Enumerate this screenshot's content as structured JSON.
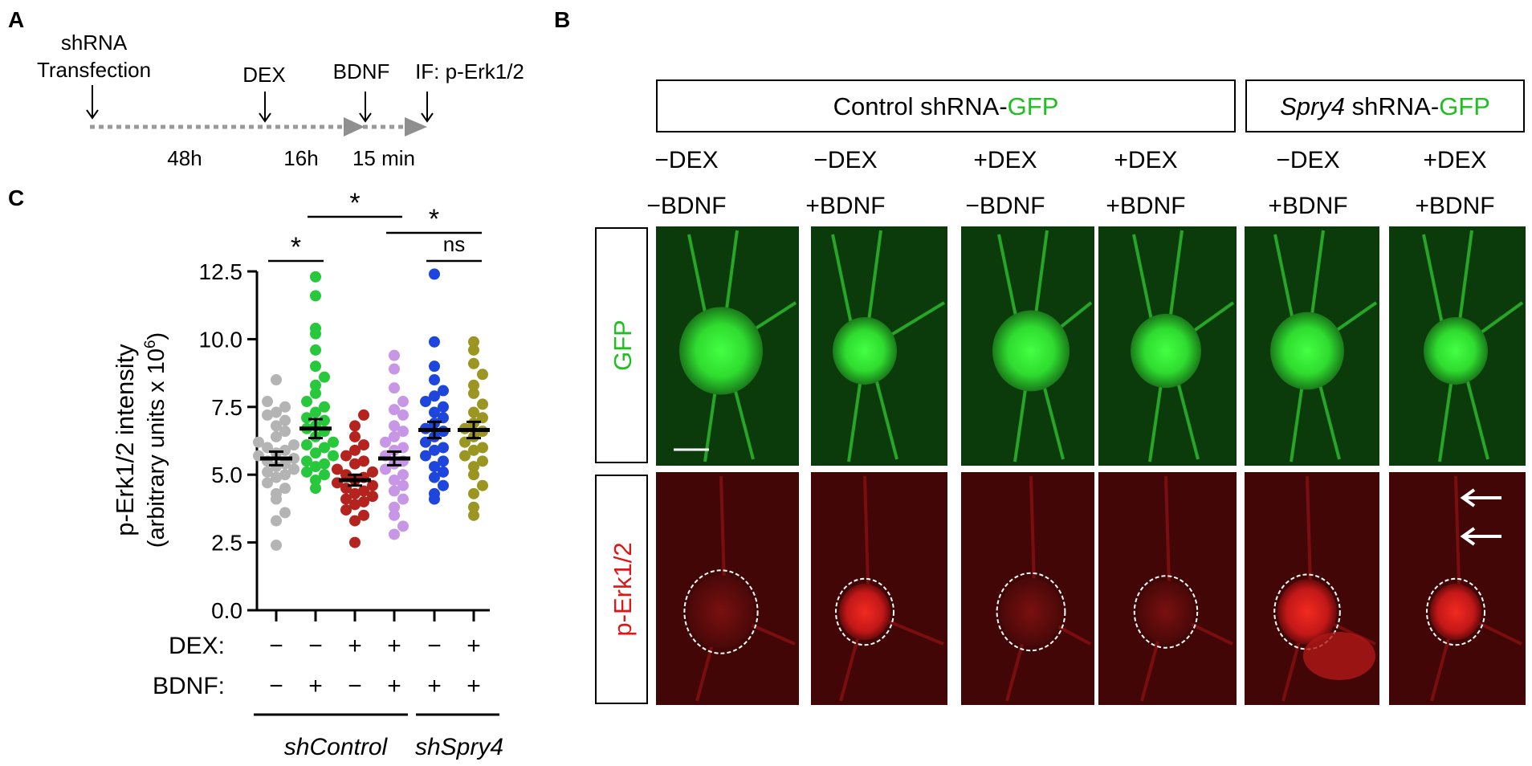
{
  "panels": {
    "a": "A",
    "b": "B",
    "c": "C"
  },
  "timeline": {
    "event_transfection_line1": "shRNA",
    "event_transfection_line2": "Transfection",
    "event_dex": "DEX",
    "event_bdnf": "BDNF",
    "event_if": "IF: p-Erk1/2",
    "interval_1": "48h",
    "interval_2": "16h",
    "interval_3": "15 min"
  },
  "micrographs": {
    "group_control_prefix": "Control shRNA-",
    "group_control_suffix": "GFP",
    "group_spry4_prefix": "Spry4",
    "group_spry4_middle": " shRNA-",
    "group_spry4_suffix": "GFP",
    "row_gfp": "GFP",
    "row_perk": "p-Erk1/2",
    "columns": [
      {
        "dex": "−DEX",
        "bdnf": "−BDNF"
      },
      {
        "dex": "−DEX",
        "bdnf": "+BDNF"
      },
      {
        "dex": "+DEX",
        "bdnf": "−BDNF"
      },
      {
        "dex": "+DEX",
        "bdnf": "+BDNF"
      },
      {
        "dex": "−DEX",
        "bdnf": "+BDNF"
      },
      {
        "dex": "+DEX",
        "bdnf": "+BDNF"
      }
    ]
  },
  "chart_data": {
    "type": "scatter",
    "ylabel_line1": "p-Erk1/2 intensity",
    "ylabel_line2": "(arbitrary units x 10",
    "ylabel_sup": "6",
    "ylabel_close": ")",
    "ylim": [
      0,
      12.5
    ],
    "yticks": [
      "0.0",
      "2.5",
      "5.0",
      "7.5",
      "10.0",
      "12.5"
    ],
    "condition_row_labels": {
      "dex": "DEX:",
      "bdnf": "BDNF:"
    },
    "groups": [
      {
        "dex": "−",
        "bdnf": "−",
        "color": "#b4b4b4",
        "mean": 5.6,
        "sem": 0.25,
        "values": [
          2.4,
          3.3,
          3.6,
          4.1,
          4.3,
          4.5,
          4.7,
          4.9,
          5.0,
          5.1,
          5.2,
          5.3,
          5.4,
          5.5,
          5.6,
          5.7,
          5.8,
          5.9,
          6.0,
          6.1,
          6.2,
          6.4,
          6.6,
          6.8,
          7.0,
          7.2,
          7.3,
          7.5,
          7.7,
          8.5
        ]
      },
      {
        "dex": "−",
        "bdnf": "+",
        "color": "#28c83c",
        "mean": 6.7,
        "sem": 0.35,
        "values": [
          4.5,
          4.8,
          5.0,
          5.1,
          5.3,
          5.4,
          5.5,
          5.7,
          5.8,
          6.0,
          6.1,
          6.2,
          6.4,
          6.6,
          6.7,
          6.8,
          7.0,
          7.1,
          7.3,
          7.5,
          7.7,
          8.0,
          8.3,
          8.6,
          9.0,
          9.6,
          10.2,
          10.4,
          11.6,
          12.3
        ]
      },
      {
        "dex": "+",
        "bdnf": "−",
        "color": "#b4231e",
        "mean": 4.8,
        "sem": 0.2,
        "values": [
          2.5,
          3.3,
          3.5,
          3.7,
          3.9,
          4.0,
          4.1,
          4.2,
          4.3,
          4.4,
          4.5,
          4.6,
          4.7,
          4.8,
          4.9,
          5.0,
          5.1,
          5.2,
          5.4,
          5.5,
          5.7,
          5.9,
          6.1,
          6.4,
          6.8,
          7.2
        ]
      },
      {
        "dex": "+",
        "bdnf": "+",
        "color": "#c896e6",
        "mean": 5.6,
        "sem": 0.25,
        "values": [
          2.8,
          3.1,
          3.5,
          3.8,
          4.1,
          4.4,
          4.6,
          4.8,
          5.0,
          5.2,
          5.4,
          5.5,
          5.7,
          5.9,
          6.0,
          6.2,
          6.4,
          6.6,
          6.8,
          7.2,
          7.4,
          7.7,
          8.2,
          8.9,
          9.4
        ]
      },
      {
        "dex": "−",
        "bdnf": "+",
        "color": "#1e46dc",
        "mean": 6.65,
        "sem": 0.3,
        "values": [
          4.1,
          4.3,
          4.6,
          4.9,
          5.1,
          5.3,
          5.5,
          5.7,
          5.9,
          6.0,
          6.2,
          6.4,
          6.6,
          6.7,
          6.9,
          7.1,
          7.3,
          7.5,
          7.7,
          7.9,
          8.1,
          8.5,
          9.0,
          9.9,
          12.4
        ]
      },
      {
        "dex": "+",
        "bdnf": "+",
        "color": "#9b9622",
        "mean": 6.65,
        "sem": 0.3,
        "values": [
          3.5,
          3.8,
          4.3,
          4.6,
          5.0,
          5.3,
          5.5,
          5.7,
          5.9,
          6.0,
          6.2,
          6.4,
          6.6,
          6.7,
          6.9,
          7.1,
          7.3,
          7.6,
          8.0,
          8.3,
          8.7,
          9.1,
          9.6,
          9.9
        ]
      }
    ],
    "group_labels": [
      "shControl",
      "shSpry4"
    ],
    "significance": [
      {
        "from": 0,
        "to": 1,
        "label": "*"
      },
      {
        "from": 1,
        "to": 3,
        "label": "*"
      },
      {
        "from": 3,
        "to": 5,
        "label": "*"
      },
      {
        "from": 4,
        "to": 5,
        "label": "ns"
      }
    ]
  },
  "colors": {
    "gfp_text": "#1fbf1f",
    "perk_text": "#e01515",
    "gfp_bg": "#0b3a0b",
    "gfp_cell": "#33e633",
    "perk_bg": "#420606",
    "perk_cell": "#d21a1a"
  }
}
